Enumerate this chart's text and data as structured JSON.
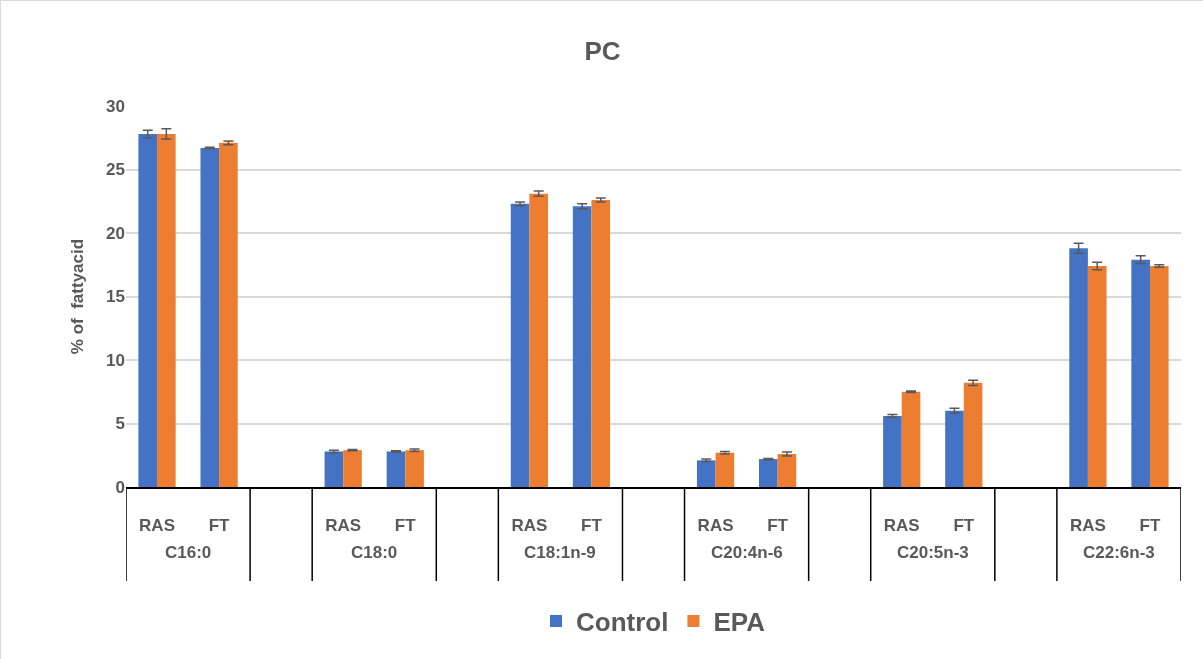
{
  "chart_data": {
    "type": "bar",
    "title": "PC",
    "ylabel": "% of  fattyacid",
    "categories": [
      "RAS",
      "FT",
      null,
      "RAS",
      "FT",
      null,
      "RAS",
      "FT",
      null,
      "RAS",
      "FT",
      null,
      "RAS",
      "FT",
      null,
      "RAS",
      "FT"
    ],
    "series": [
      {
        "name": "Control",
        "color": "#4472c4",
        "values": [
          27.8,
          26.7,
          null,
          2.8,
          2.8,
          null,
          22.3,
          22.1,
          null,
          2.1,
          2.2,
          null,
          5.6,
          6.0,
          null,
          18.8,
          17.9
        ],
        "errors": [
          0.3,
          0.05,
          null,
          0.1,
          0.05,
          null,
          0.15,
          0.2,
          null,
          0.1,
          0.05,
          null,
          0.1,
          0.2,
          null,
          0.4,
          0.3
        ]
      },
      {
        "name": "EPA",
        "color": "#ed7d31",
        "values": [
          27.8,
          27.1,
          null,
          2.9,
          2.9,
          null,
          23.1,
          22.6,
          null,
          2.7,
          2.6,
          null,
          7.5,
          8.2,
          null,
          17.4,
          17.4
        ],
        "errors": [
          0.4,
          0.15,
          null,
          0.05,
          0.1,
          null,
          0.2,
          0.15,
          null,
          0.1,
          0.15,
          null,
          0.05,
          0.2,
          null,
          0.3,
          0.1
        ]
      }
    ],
    "annotations": [
      "C16:0",
      "C18:0",
      "C18:1n-9",
      "C20:4n-6",
      "C20:5n-3",
      "C22:6n-3"
    ],
    "ylim": [
      0,
      30
    ],
    "yticks": [
      0,
      5,
      10,
      15,
      20,
      25,
      30
    ],
    "grid": "y",
    "legend": "bottom"
  }
}
